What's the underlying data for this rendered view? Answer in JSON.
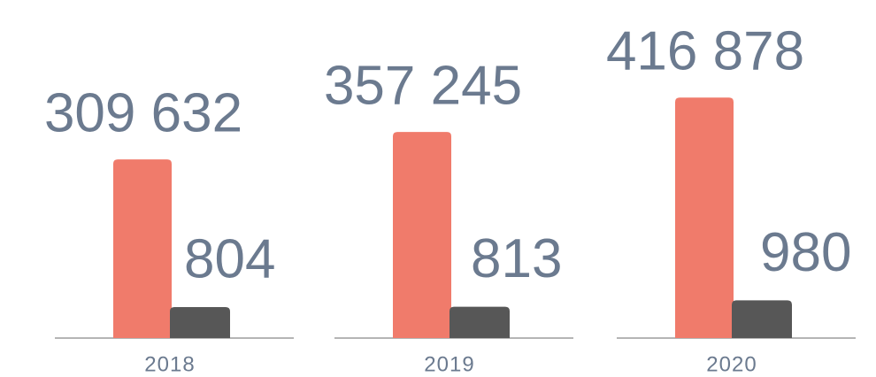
{
  "chart_data": {
    "type": "bar",
    "categories": [
      "2018",
      "2019",
      "2020"
    ],
    "series": [
      {
        "color": "#f07b6b",
        "values": [
          309632,
          357245,
          416878
        ],
        "value_labels": [
          "309 632",
          "357 245",
          "416 878"
        ]
      },
      {
        "color": "#575757",
        "values": [
          804,
          813,
          980
        ],
        "axis": "y2"
      }
    ],
    "ylim": [
      0,
      500000
    ],
    "y2lim": [
      0,
      7500
    ]
  }
}
